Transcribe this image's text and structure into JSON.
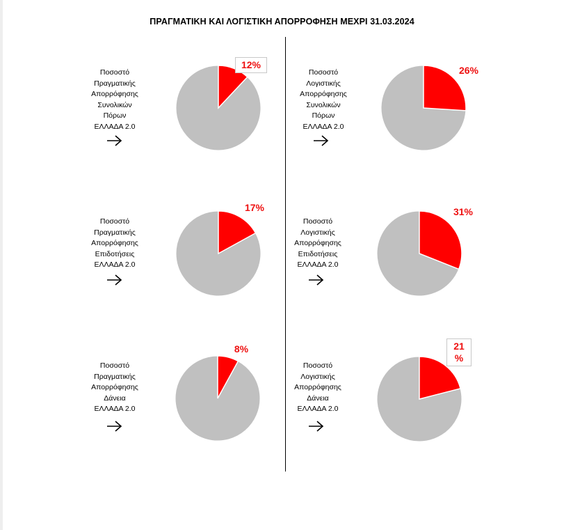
{
  "title": "ΠΡΑΓΜΑΤΙΚΗ ΚΑΙ ΛΟΓΙΣΤΙΚΗ ΑΠΟΡΡΟΦΗΣΗ ΜΕΧΡΙ 31.03.2024",
  "colors": {
    "highlight": "#ff0000",
    "rest": "#c0c0c0",
    "label": "#ee1111"
  },
  "icons": {
    "arrow": "arrow-right-icon"
  },
  "chart_data": [
    {
      "type": "pie",
      "label_lines": [
        "Ποσοστό",
        "Πραγματικής",
        "Απορρόφησης",
        "Συνολικών",
        "Πόρων",
        "ΕΛΛΑΔΑ 2.0"
      ],
      "value": 12,
      "value_label": "12%"
    },
    {
      "type": "pie",
      "label_lines": [
        "Ποσοστό",
        "Λογιστικής",
        "Απορρόφησης",
        "Συνολικών",
        "Πόρων",
        "ΕΛΛΑΔΑ 2.0"
      ],
      "value": 26,
      "value_label": "26%"
    },
    {
      "type": "pie",
      "label_lines": [
        "Ποσοστό",
        "Πραγματικής",
        "Απορρόφησης",
        "Επιδοτήσεις",
        "ΕΛΛΑΔΑ 2.0"
      ],
      "value": 17,
      "value_label": "17%"
    },
    {
      "type": "pie",
      "label_lines": [
        "Ποσοστό",
        "Λογιστικής",
        "Απορρόφησης",
        "Επιδοτήσεις",
        "ΕΛΛΑΔΑ 2.0"
      ],
      "value": 31,
      "value_label": "31%"
    },
    {
      "type": "pie",
      "label_lines": [
        "Ποσοστό",
        "Πραγματικής",
        "Απορρόφησης",
        "Δάνεια",
        "ΕΛΛΑΔΑ 2.0"
      ],
      "value": 8,
      "value_label": "8%"
    },
    {
      "type": "pie",
      "label_lines": [
        "Ποσοστό",
        "Λογιστικής",
        "Απορρόφησης",
        "Δάνεια",
        "ΕΛΛΑΔΑ 2.0"
      ],
      "value": 21,
      "value_label": "21 %"
    }
  ]
}
